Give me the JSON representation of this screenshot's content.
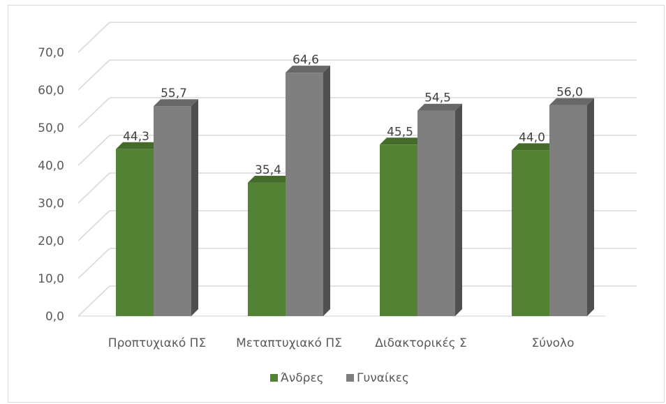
{
  "chart_data": {
    "type": "bar",
    "title": "",
    "xlabel": "",
    "ylabel": "",
    "categories": [
      "Προπτυχιακό ΠΣ",
      "Μεταπτυχιακό ΠΣ",
      "Διδακτορικές Σ",
      "Σύνολο"
    ],
    "series": [
      {
        "name": "Άνδρες",
        "values": [
          44.3,
          35.4,
          45.5,
          44.0
        ],
        "labels": [
          "44,3",
          "35,4",
          "45,5",
          "44,0"
        ],
        "color": "#548235"
      },
      {
        "name": "Γυναίκες",
        "values": [
          55.7,
          64.6,
          54.5,
          56.0
        ],
        "labels": [
          "55,7",
          "64,6",
          "54,5",
          "56,0"
        ],
        "color": "#7f7f7f"
      }
    ],
    "ylim": [
      0,
      70
    ],
    "yticks": [
      "0,0",
      "10,0",
      "20,0",
      "30,0",
      "40,0",
      "50,0",
      "60,0",
      "70,0"
    ],
    "grid": true,
    "legend": "bottom",
    "style": "3d-clustered-column"
  }
}
